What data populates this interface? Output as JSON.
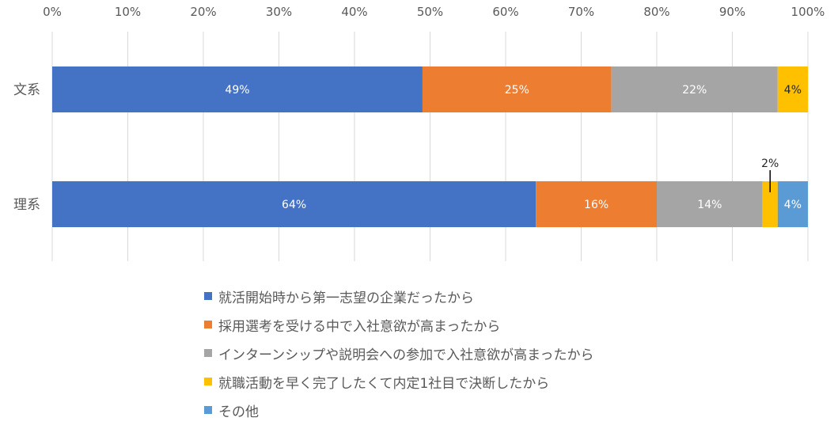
{
  "chart_data": {
    "type": "bar",
    "orientation": "horizontal",
    "stacked": true,
    "categories": [
      "文系",
      "理系"
    ],
    "x_ticks": [
      "0%",
      "10%",
      "20%",
      "30%",
      "40%",
      "50%",
      "60%",
      "70%",
      "80%",
      "90%",
      "100%"
    ],
    "xlim": [
      0,
      100
    ],
    "grid": true,
    "legend_position": "bottom",
    "series": [
      {
        "name": "就活開始時から第一志望の企業だったから",
        "color": "#4472C4",
        "values": [
          49,
          64
        ],
        "labels": [
          "49%",
          "64%"
        ],
        "label_color": "#ffffff"
      },
      {
        "name": "採用選考を受ける中で入社意欲が高まったから",
        "color": "#ED7D31",
        "values": [
          25,
          16
        ],
        "labels": [
          "25%",
          "16%"
        ],
        "label_color": "#ffffff"
      },
      {
        "name": "インターンシップや説明会への参加で入社意欲が高まったから",
        "color": "#A5A5A5",
        "values": [
          22,
          14
        ],
        "labels": [
          "22%",
          "14%"
        ],
        "label_color": "#ffffff"
      },
      {
        "name": "就職活動を早く完了したくて内定1社目で決断したから",
        "color": "#FFC000",
        "values": [
          4,
          2
        ],
        "labels": [
          "4%",
          "2%"
        ],
        "label_color": "#262626"
      },
      {
        "name": "その他",
        "color": "#5B9BD5",
        "values": [
          0,
          4
        ],
        "labels": [
          "",
          "4%"
        ],
        "label_color": "#ffffff"
      }
    ]
  }
}
